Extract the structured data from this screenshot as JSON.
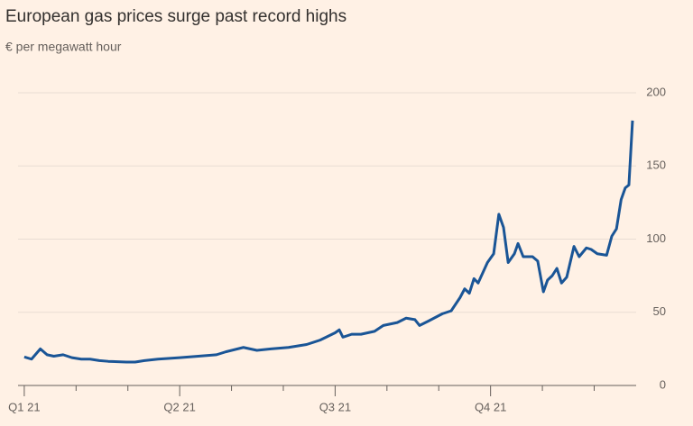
{
  "chart_data": {
    "type": "line",
    "title": "European gas prices surge past record highs",
    "subtitle": "€ per megawatt hour",
    "x": [
      0,
      0.14,
      0.31,
      0.44,
      0.57,
      0.75,
      0.92,
      1.1,
      1.27,
      1.45,
      1.62,
      1.97,
      2.14,
      2.32,
      2.58,
      3.0,
      3.36,
      3.71,
      3.89,
      4.23,
      4.49,
      4.76,
      5.1,
      5.45,
      5.71,
      6.0,
      6.08,
      6.15,
      6.32,
      6.5,
      6.76,
      6.93,
      7.2,
      7.37,
      7.54,
      7.63,
      7.8,
      8.07,
      8.24,
      8.41,
      8.5,
      8.59,
      8.68,
      8.76,
      8.94,
      9.06,
      9.16,
      9.25,
      9.34,
      9.46,
      9.53,
      9.63,
      9.81,
      9.91,
      10.02,
      10.1,
      10.19,
      10.28,
      10.37,
      10.47,
      10.61,
      10.71,
      10.85,
      10.94,
      11.06,
      11.24,
      11.34,
      11.43,
      11.52,
      11.6,
      11.67,
      11.74
    ],
    "series": [
      {
        "name": "European gas price",
        "color": "#1a5596",
        "values": [
          19.5,
          18,
          25,
          21,
          20,
          21,
          19,
          18,
          18,
          17,
          16.5,
          16,
          16,
          17,
          18,
          19,
          20,
          21,
          23,
          26,
          24,
          25,
          26,
          28,
          31,
          36,
          38,
          33,
          35,
          35,
          37,
          41,
          43,
          46,
          45,
          41,
          44,
          49,
          51,
          60,
          66,
          63,
          73,
          70,
          84,
          90,
          117,
          108,
          84,
          90,
          97,
          88,
          88,
          85,
          64,
          72,
          75,
          80,
          70,
          74,
          95,
          88,
          94,
          93,
          90,
          89,
          102,
          107,
          127,
          135,
          137,
          181
        ]
      }
    ],
    "xlim": [
      -0.12,
      11.81
    ],
    "xticks": [
      {
        "value": 0,
        "label": "Q1 21"
      },
      {
        "value": 3,
        "label": "Q2 21"
      },
      {
        "value": 6,
        "label": "Q3 21"
      },
      {
        "value": 9,
        "label": "Q4 21"
      }
    ],
    "xminorticks": [
      1,
      2,
      4,
      5,
      7,
      8,
      10,
      11
    ],
    "ylim": [
      0,
      200
    ],
    "yticks": [
      0,
      50,
      100,
      150,
      200
    ],
    "grid": true
  }
}
